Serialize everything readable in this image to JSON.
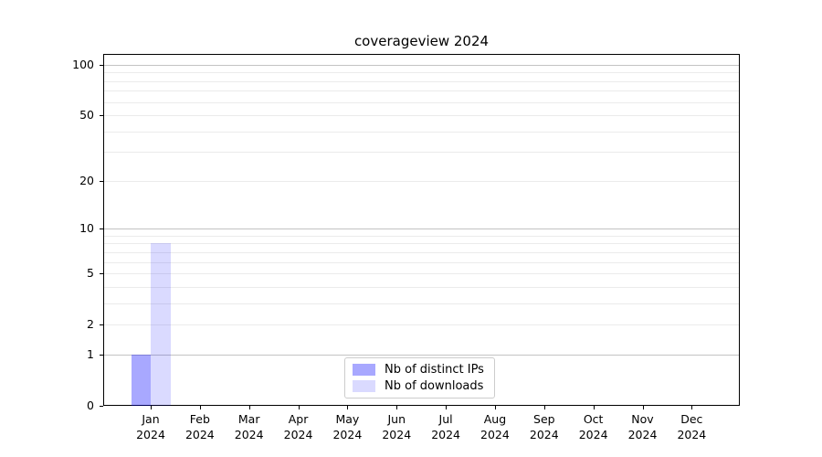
{
  "title": "coverageview 2024",
  "chart_data": {
    "type": "bar",
    "title": "coverageview 2024",
    "xlabel": "",
    "ylabel": "",
    "x_categories": [
      {
        "month": "Jan",
        "year": "2024"
      },
      {
        "month": "Feb",
        "year": "2024"
      },
      {
        "month": "Mar",
        "year": "2024"
      },
      {
        "month": "Apr",
        "year": "2024"
      },
      {
        "month": "May",
        "year": "2024"
      },
      {
        "month": "Jun",
        "year": "2024"
      },
      {
        "month": "Jul",
        "year": "2024"
      },
      {
        "month": "Aug",
        "year": "2024"
      },
      {
        "month": "Sep",
        "year": "2024"
      },
      {
        "month": "Oct",
        "year": "2024"
      },
      {
        "month": "Nov",
        "year": "2024"
      },
      {
        "month": "Dec",
        "year": "2024"
      }
    ],
    "series": [
      {
        "name": "Nb of distinct IPs",
        "color": "rgba(0,0,255,0.34)",
        "values": [
          1,
          0,
          0,
          0,
          0,
          0,
          0,
          0,
          0,
          0,
          0,
          0
        ]
      },
      {
        "name": "Nb of downloads",
        "color": "rgba(0,0,255,0.145)",
        "values": [
          8,
          0,
          0,
          0,
          0,
          0,
          0,
          0,
          0,
          0,
          0,
          0
        ]
      }
    ],
    "yscale": "log1p",
    "ylim": [
      0,
      116
    ],
    "ytick_values": [
      0,
      1,
      2,
      5,
      10,
      20,
      50,
      100
    ],
    "ytick_labels": [
      "0",
      "1",
      "2",
      "5",
      "10",
      "20",
      "50",
      "100"
    ],
    "major_grid_values": [
      1,
      10,
      100
    ],
    "minor_grid_values": [
      2,
      3,
      4,
      5,
      6,
      7,
      8,
      9,
      20,
      30,
      40,
      50,
      60,
      70,
      80,
      90
    ],
    "grid": true,
    "legend_position": "lower center"
  },
  "colors": {
    "spine": "#000000",
    "major_grid": "#c3c3c3",
    "minor_grid": "#ebebeb",
    "legend_border": "#cccccc"
  }
}
